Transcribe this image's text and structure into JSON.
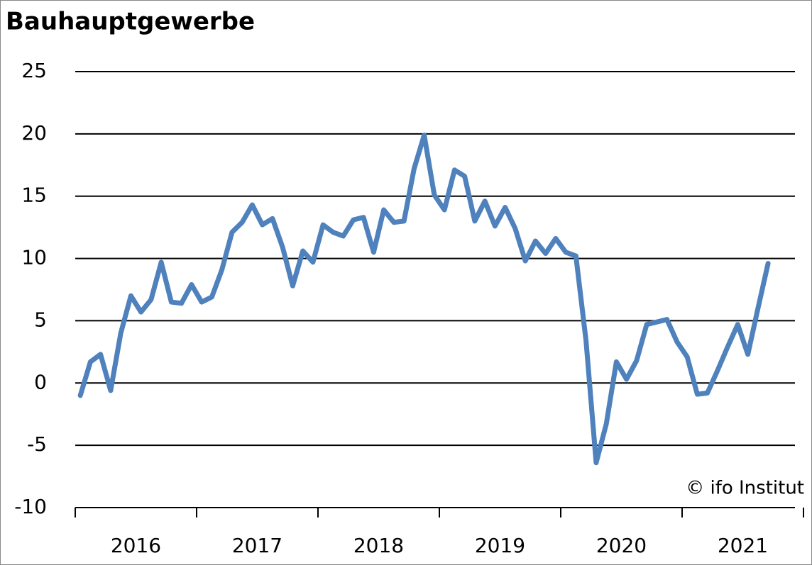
{
  "chart_data": {
    "type": "line",
    "title": "Bauhauptgewerbe",
    "annotation": "© ifo Institut",
    "categories": [
      "2016",
      null,
      null,
      null,
      null,
      null,
      null,
      null,
      null,
      null,
      null,
      null,
      "2017",
      null,
      null,
      null,
      null,
      null,
      null,
      null,
      null,
      null,
      null,
      null,
      "2018",
      null,
      null,
      null,
      null,
      null,
      null,
      null,
      null,
      null,
      null,
      null,
      "2019",
      null,
      null,
      null,
      null,
      null,
      null,
      null,
      null,
      null,
      null,
      null,
      "2020",
      null,
      null,
      null,
      null,
      null,
      null,
      null,
      null,
      null,
      null,
      null,
      "2021",
      null,
      null,
      null,
      null,
      null,
      null,
      null,
      null
    ],
    "series": [
      {
        "color": "#4f81bd",
        "values": [
          -1.0,
          1.7,
          2.3,
          -0.6,
          4.0,
          7.0,
          5.7,
          6.7,
          9.7,
          6.5,
          6.4,
          7.9,
          6.5,
          6.9,
          9.1,
          12.1,
          12.9,
          14.3,
          12.7,
          13.2,
          10.9,
          7.8,
          10.6,
          9.7,
          12.7,
          12.1,
          11.8,
          13.1,
          13.3,
          10.5,
          13.9,
          12.9,
          13.0,
          17.2,
          19.9,
          15.1,
          13.9,
          17.1,
          16.6,
          13.0,
          14.6,
          12.6,
          14.1,
          12.4,
          9.8,
          11.4,
          10.4,
          11.6,
          10.5,
          10.2,
          3.4,
          -6.4,
          -3.3,
          1.7,
          0.3,
          1.8,
          4.7,
          4.9,
          5.1,
          3.3,
          2.1,
          -0.9,
          -0.8,
          1.0,
          2.9,
          4.7,
          2.3,
          6.0,
          9.6
        ]
      }
    ],
    "ylim": [
      -10,
      25
    ],
    "yticks": [
      -10,
      -5,
      0,
      5,
      10,
      15,
      20,
      25
    ],
    "grid": true
  }
}
